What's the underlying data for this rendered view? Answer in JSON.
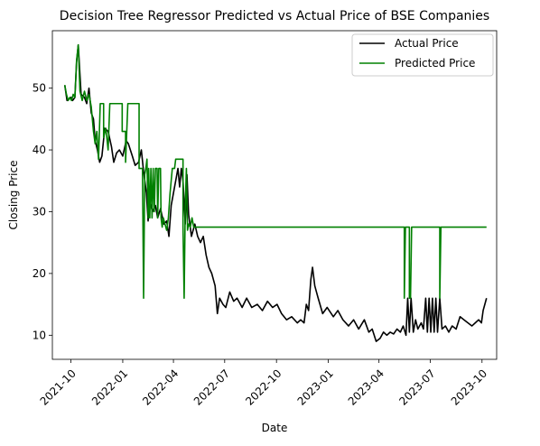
{
  "chart_data": {
    "type": "line",
    "title": "Decision Tree Regressor Predicted vs Actual Price of BSE Companies",
    "xlabel": "Date",
    "ylabel": "Closing Price",
    "x_ticks": [
      "2021-10",
      "2022-01",
      "2022-04",
      "2022-07",
      "2022-10",
      "2023-01",
      "2023-04",
      "2023-07",
      "2023-10"
    ],
    "y_ticks": [
      10,
      20,
      30,
      40,
      50
    ],
    "xlim": [
      "2021-08-29",
      "2023-10-27"
    ],
    "ylim": [
      6.1,
      59.3
    ],
    "grid": false,
    "legend_position": "top-right",
    "series": [
      {
        "name": "Actual Price",
        "color": "#000000",
        "points": [
          [
            "2021-09-20",
            50.5
          ],
          [
            "2021-09-24",
            48.0
          ],
          [
            "2021-10-01",
            48.5
          ],
          [
            "2021-10-04",
            48.0
          ],
          [
            "2021-10-08",
            48.5
          ],
          [
            "2021-10-11",
            54.2
          ],
          [
            "2021-10-14",
            57.0
          ],
          [
            "2021-10-19",
            49.0
          ],
          [
            "2021-10-25",
            48.5
          ],
          [
            "2021-10-29",
            47.5
          ],
          [
            "2021-11-02",
            50.0
          ],
          [
            "2021-11-06",
            46.0
          ],
          [
            "2021-11-10",
            45.0
          ],
          [
            "2021-11-13",
            41.5
          ],
          [
            "2021-11-17",
            40.0
          ],
          [
            "2021-11-21",
            38.0
          ],
          [
            "2021-11-25",
            39.0
          ],
          [
            "2021-11-30",
            43.5
          ],
          [
            "2021-12-06",
            43.0
          ],
          [
            "2021-12-12",
            40.5
          ],
          [
            "2021-12-16",
            38.0
          ],
          [
            "2021-12-21",
            39.5
          ],
          [
            "2021-12-26",
            40.0
          ],
          [
            "2022-01-01",
            39.0
          ],
          [
            "2022-01-07",
            41.5
          ],
          [
            "2022-01-11",
            41.0
          ],
          [
            "2022-01-18",
            39.0
          ],
          [
            "2022-01-23",
            37.5
          ],
          [
            "2022-01-29",
            38.0
          ],
          [
            "2022-02-03",
            40.0
          ],
          [
            "2022-02-07",
            36.5
          ],
          [
            "2022-02-12",
            33.0
          ],
          [
            "2022-02-15",
            28.5
          ],
          [
            "2022-02-18",
            31.5
          ],
          [
            "2022-02-23",
            30.0
          ],
          [
            "2022-02-28",
            31.0
          ],
          [
            "2022-03-04",
            29.0
          ],
          [
            "2022-03-09",
            30.5
          ],
          [
            "2022-03-15",
            28.0
          ],
          [
            "2022-03-20",
            28.5
          ],
          [
            "2022-03-24",
            26.0
          ],
          [
            "2022-03-28",
            31.0
          ],
          [
            "2022-04-01",
            33.0
          ],
          [
            "2022-04-06",
            35.5
          ],
          [
            "2022-04-09",
            37.0
          ],
          [
            "2022-04-12",
            34.0
          ],
          [
            "2022-04-15",
            37.0
          ],
          [
            "2022-04-18",
            35.0
          ],
          [
            "2022-04-22",
            28.0
          ],
          [
            "2022-04-25",
            36.0
          ],
          [
            "2022-04-28",
            29.5
          ],
          [
            "2022-05-03",
            26.0
          ],
          [
            "2022-05-09",
            28.0
          ],
          [
            "2022-05-14",
            26.0
          ],
          [
            "2022-05-19",
            25.0
          ],
          [
            "2022-05-24",
            26.0
          ],
          [
            "2022-05-29",
            23.0
          ],
          [
            "2022-06-03",
            21.0
          ],
          [
            "2022-06-08",
            20.0
          ],
          [
            "2022-06-14",
            18.0
          ],
          [
            "2022-06-18",
            13.5
          ],
          [
            "2022-06-22",
            16.0
          ],
          [
            "2022-06-28",
            15.0
          ],
          [
            "2022-07-03",
            14.5
          ],
          [
            "2022-07-10",
            17.0
          ],
          [
            "2022-07-17",
            15.5
          ],
          [
            "2022-07-23",
            16.0
          ],
          [
            "2022-08-01",
            14.5
          ],
          [
            "2022-08-09",
            16.0
          ],
          [
            "2022-08-18",
            14.5
          ],
          [
            "2022-08-28",
            15.0
          ],
          [
            "2022-09-06",
            14.0
          ],
          [
            "2022-09-15",
            15.5
          ],
          [
            "2022-09-24",
            14.5
          ],
          [
            "2022-10-02",
            15.0
          ],
          [
            "2022-10-10",
            13.5
          ],
          [
            "2022-10-19",
            12.5
          ],
          [
            "2022-10-28",
            13.0
          ],
          [
            "2022-11-07",
            12.0
          ],
          [
            "2022-11-13",
            12.5
          ],
          [
            "2022-11-19",
            12.0
          ],
          [
            "2022-11-23",
            15.0
          ],
          [
            "2022-11-27",
            14.0
          ],
          [
            "2022-12-01",
            19.0
          ],
          [
            "2022-12-04",
            21.0
          ],
          [
            "2022-12-08",
            18.0
          ],
          [
            "2022-12-14",
            16.0
          ],
          [
            "2022-12-22",
            13.5
          ],
          [
            "2022-12-30",
            14.5
          ],
          [
            "2023-01-10",
            13.0
          ],
          [
            "2023-01-18",
            14.0
          ],
          [
            "2023-01-27",
            12.5
          ],
          [
            "2023-02-06",
            11.5
          ],
          [
            "2023-02-15",
            12.5
          ],
          [
            "2023-02-24",
            11.0
          ],
          [
            "2023-03-06",
            12.5
          ],
          [
            "2023-03-14",
            10.5
          ],
          [
            "2023-03-20",
            11.0
          ],
          [
            "2023-03-27",
            9.0
          ],
          [
            "2023-04-03",
            9.5
          ],
          [
            "2023-04-09",
            10.5
          ],
          [
            "2023-04-15",
            10.0
          ],
          [
            "2023-04-21",
            10.5
          ],
          [
            "2023-04-27",
            10.2
          ],
          [
            "2023-05-03",
            11.0
          ],
          [
            "2023-05-09",
            10.5
          ],
          [
            "2023-05-14",
            11.5
          ],
          [
            "2023-05-19",
            10.0
          ],
          [
            "2023-05-22",
            16.0
          ],
          [
            "2023-05-25",
            10.5
          ],
          [
            "2023-05-28",
            16.0
          ],
          [
            "2023-06-01",
            10.5
          ],
          [
            "2023-06-05",
            12.5
          ],
          [
            "2023-06-09",
            11.0
          ],
          [
            "2023-06-15",
            12.0
          ],
          [
            "2023-06-19",
            11.0
          ],
          [
            "2023-06-23",
            16.0
          ],
          [
            "2023-06-26",
            10.5
          ],
          [
            "2023-06-29",
            16.0
          ],
          [
            "2023-07-02",
            10.5
          ],
          [
            "2023-07-05",
            16.0
          ],
          [
            "2023-07-08",
            10.5
          ],
          [
            "2023-07-11",
            16.0
          ],
          [
            "2023-07-14",
            10.5
          ],
          [
            "2023-07-18",
            16.0
          ],
          [
            "2023-07-22",
            11.0
          ],
          [
            "2023-07-28",
            11.5
          ],
          [
            "2023-08-03",
            10.5
          ],
          [
            "2023-08-09",
            11.5
          ],
          [
            "2023-08-16",
            11.0
          ],
          [
            "2023-08-23",
            13.0
          ],
          [
            "2023-08-30",
            12.5
          ],
          [
            "2023-09-06",
            12.0
          ],
          [
            "2023-09-13",
            11.5
          ],
          [
            "2023-09-19",
            12.0
          ],
          [
            "2023-09-25",
            12.5
          ],
          [
            "2023-09-30",
            12.0
          ],
          [
            "2023-10-03",
            14.0
          ],
          [
            "2023-10-06",
            15.0
          ],
          [
            "2023-10-09",
            16.0
          ]
        ]
      },
      {
        "name": "Predicted Price",
        "color": "#008000",
        "points": [
          [
            "2021-09-20",
            50.5
          ],
          [
            "2021-09-23",
            49.0
          ],
          [
            "2021-09-26",
            48.0
          ],
          [
            "2021-09-29",
            48.5
          ],
          [
            "2021-10-02",
            48.0
          ],
          [
            "2021-10-05",
            49.0
          ],
          [
            "2021-10-08",
            48.5
          ],
          [
            "2021-10-11",
            54.5
          ],
          [
            "2021-10-14",
            57.0
          ],
          [
            "2021-10-17",
            49.5
          ],
          [
            "2021-10-21",
            48.0
          ],
          [
            "2021-10-25",
            49.5
          ],
          [
            "2021-10-29",
            48.0
          ],
          [
            "2021-11-02",
            49.0
          ],
          [
            "2021-11-06",
            47.0
          ],
          [
            "2021-11-10",
            43.0
          ],
          [
            "2021-11-13",
            41.0
          ],
          [
            "2021-11-16",
            43.0
          ],
          [
            "2021-11-19",
            38.5
          ],
          [
            "2021-11-22",
            47.5
          ],
          [
            "2021-11-28",
            47.5
          ],
          [
            "2021-11-28",
            42.0
          ],
          [
            "2021-12-02",
            43.5
          ],
          [
            "2021-12-06",
            40.0
          ],
          [
            "2021-12-09",
            47.5
          ],
          [
            "2021-12-31",
            47.5
          ],
          [
            "2021-12-31",
            43.0
          ],
          [
            "2022-01-06",
            43.0
          ],
          [
            "2022-01-06",
            38.0
          ],
          [
            "2022-01-10",
            47.5
          ],
          [
            "2022-01-30",
            47.5
          ],
          [
            "2022-01-30",
            37.0
          ],
          [
            "2022-02-05",
            37.0
          ],
          [
            "2022-02-07",
            16.0
          ],
          [
            "2022-02-09",
            36.0
          ],
          [
            "2022-02-11",
            37.0
          ],
          [
            "2022-02-13",
            38.5
          ],
          [
            "2022-02-15",
            29.0
          ],
          [
            "2022-02-16",
            37.0
          ],
          [
            "2022-02-18",
            29.0
          ],
          [
            "2022-02-20",
            37.0
          ],
          [
            "2022-02-22",
            29.0
          ],
          [
            "2022-02-24",
            37.0
          ],
          [
            "2022-02-26",
            30.0
          ],
          [
            "2022-02-28",
            37.0
          ],
          [
            "2022-03-03",
            37.0
          ],
          [
            "2022-03-04",
            29.0
          ],
          [
            "2022-03-06",
            37.0
          ],
          [
            "2022-03-09",
            37.0
          ],
          [
            "2022-03-10",
            29.0
          ],
          [
            "2022-03-12",
            27.5
          ],
          [
            "2022-03-14",
            29.0
          ],
          [
            "2022-03-17",
            28.0
          ],
          [
            "2022-03-20",
            27.0
          ],
          [
            "2022-03-23",
            29.0
          ],
          [
            "2022-03-26",
            33.0
          ],
          [
            "2022-03-30",
            37.0
          ],
          [
            "2022-04-03",
            37.0
          ],
          [
            "2022-04-05",
            38.5
          ],
          [
            "2022-04-18",
            38.5
          ],
          [
            "2022-04-18",
            27.5
          ],
          [
            "2022-04-20",
            16.0
          ],
          [
            "2022-04-22",
            31.0
          ],
          [
            "2022-04-24",
            37.0
          ],
          [
            "2022-04-26",
            27.0
          ],
          [
            "2022-04-28",
            28.0
          ],
          [
            "2022-05-01",
            27.5
          ],
          [
            "2022-05-04",
            29.0
          ],
          [
            "2022-05-07",
            27.5
          ],
          [
            "2023-05-16",
            27.5
          ],
          [
            "2023-05-16",
            16.0
          ],
          [
            "2023-05-18",
            27.5
          ],
          [
            "2023-05-25",
            27.5
          ],
          [
            "2023-05-25",
            16.0
          ],
          [
            "2023-05-27",
            16.0
          ],
          [
            "2023-05-29",
            27.5
          ],
          [
            "2023-07-18",
            27.5
          ],
          [
            "2023-07-18",
            16.0
          ],
          [
            "2023-07-20",
            27.5
          ],
          [
            "2023-10-09",
            27.5
          ]
        ]
      }
    ]
  }
}
